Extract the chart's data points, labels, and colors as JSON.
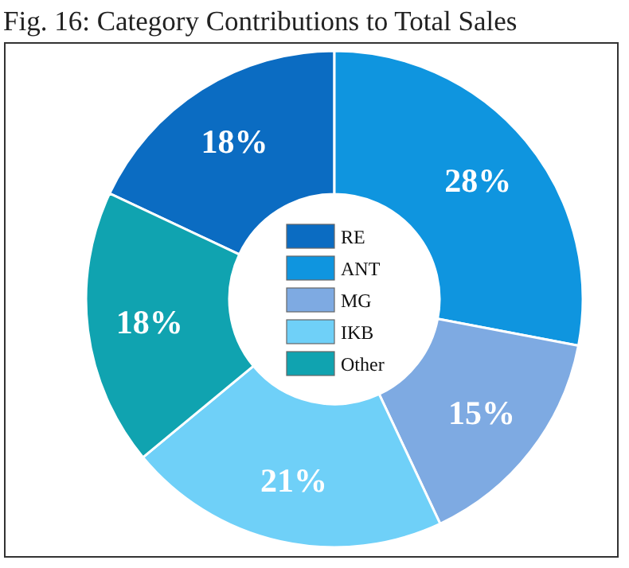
{
  "chart_data": {
    "type": "donut",
    "title": "Fig. 16: Category Contributions to Total Sales",
    "categories": [
      "RE",
      "ANT",
      "MG",
      "IKB",
      "Other"
    ],
    "values": [
      18,
      28,
      15,
      21,
      18
    ],
    "colors": [
      "#0b6cc2",
      "#0f95df",
      "#7eaae2",
      "#6fd0f8",
      "#10a3b0"
    ],
    "value_labels": [
      "18%",
      "28%",
      "15%",
      "21%",
      "18%"
    ],
    "legend": "center"
  }
}
